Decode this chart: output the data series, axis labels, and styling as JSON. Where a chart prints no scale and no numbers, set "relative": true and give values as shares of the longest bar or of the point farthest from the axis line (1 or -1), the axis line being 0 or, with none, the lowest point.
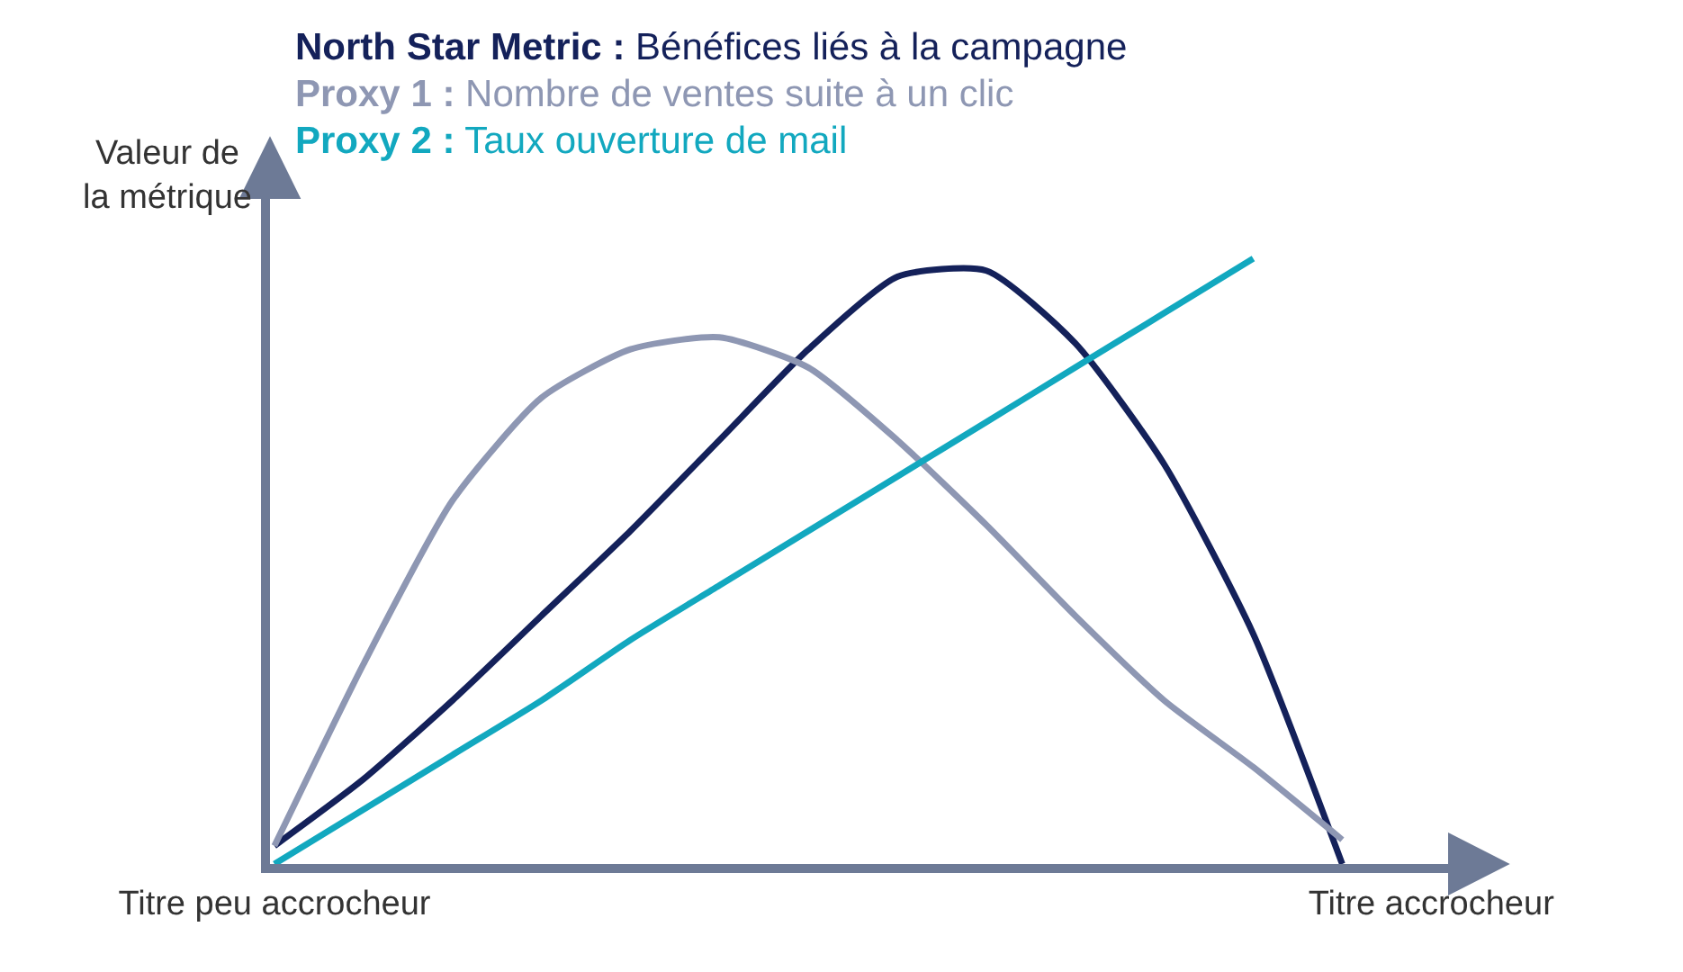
{
  "chart_data": {
    "type": "line",
    "relative": true,
    "ylabel": "Valeur de\nla métrique",
    "categories": [
      "Titre peu accrocheur",
      null,
      null,
      null,
      null,
      null,
      null,
      null,
      null,
      null,
      null,
      null,
      null,
      "Titre accrocheur"
    ],
    "series": [
      {
        "name": "North Star Metric : Bénéfices liés à la campagne",
        "color": "#14215a",
        "values": [
          0.03,
          0.14,
          0.27,
          0.41,
          0.55,
          0.7,
          0.85,
          0.97,
          0.98,
          0.86,
          0.66,
          0.38,
          0,
          null
        ]
      },
      {
        "name": "Proxy 1 : Nombre de ventes suite à un clic",
        "color": "#8e97b3",
        "values": [
          0.03,
          0.33,
          0.6,
          0.77,
          0.85,
          0.87,
          0.82,
          0.7,
          0.56,
          0.41,
          0.27,
          0.16,
          0.04,
          null
        ]
      },
      {
        "name": "Proxy 2 : Taux ouverture de mail",
        "color": "#12a8bf",
        "values": [
          0,
          0.09,
          0.18,
          0.27,
          0.37,
          0.46,
          0.55,
          0.64,
          0.73,
          0.82,
          0.91,
          1.0,
          null,
          null
        ]
      }
    ],
    "legend": "top",
    "marker": "none",
    "line_style": "solid"
  }
}
